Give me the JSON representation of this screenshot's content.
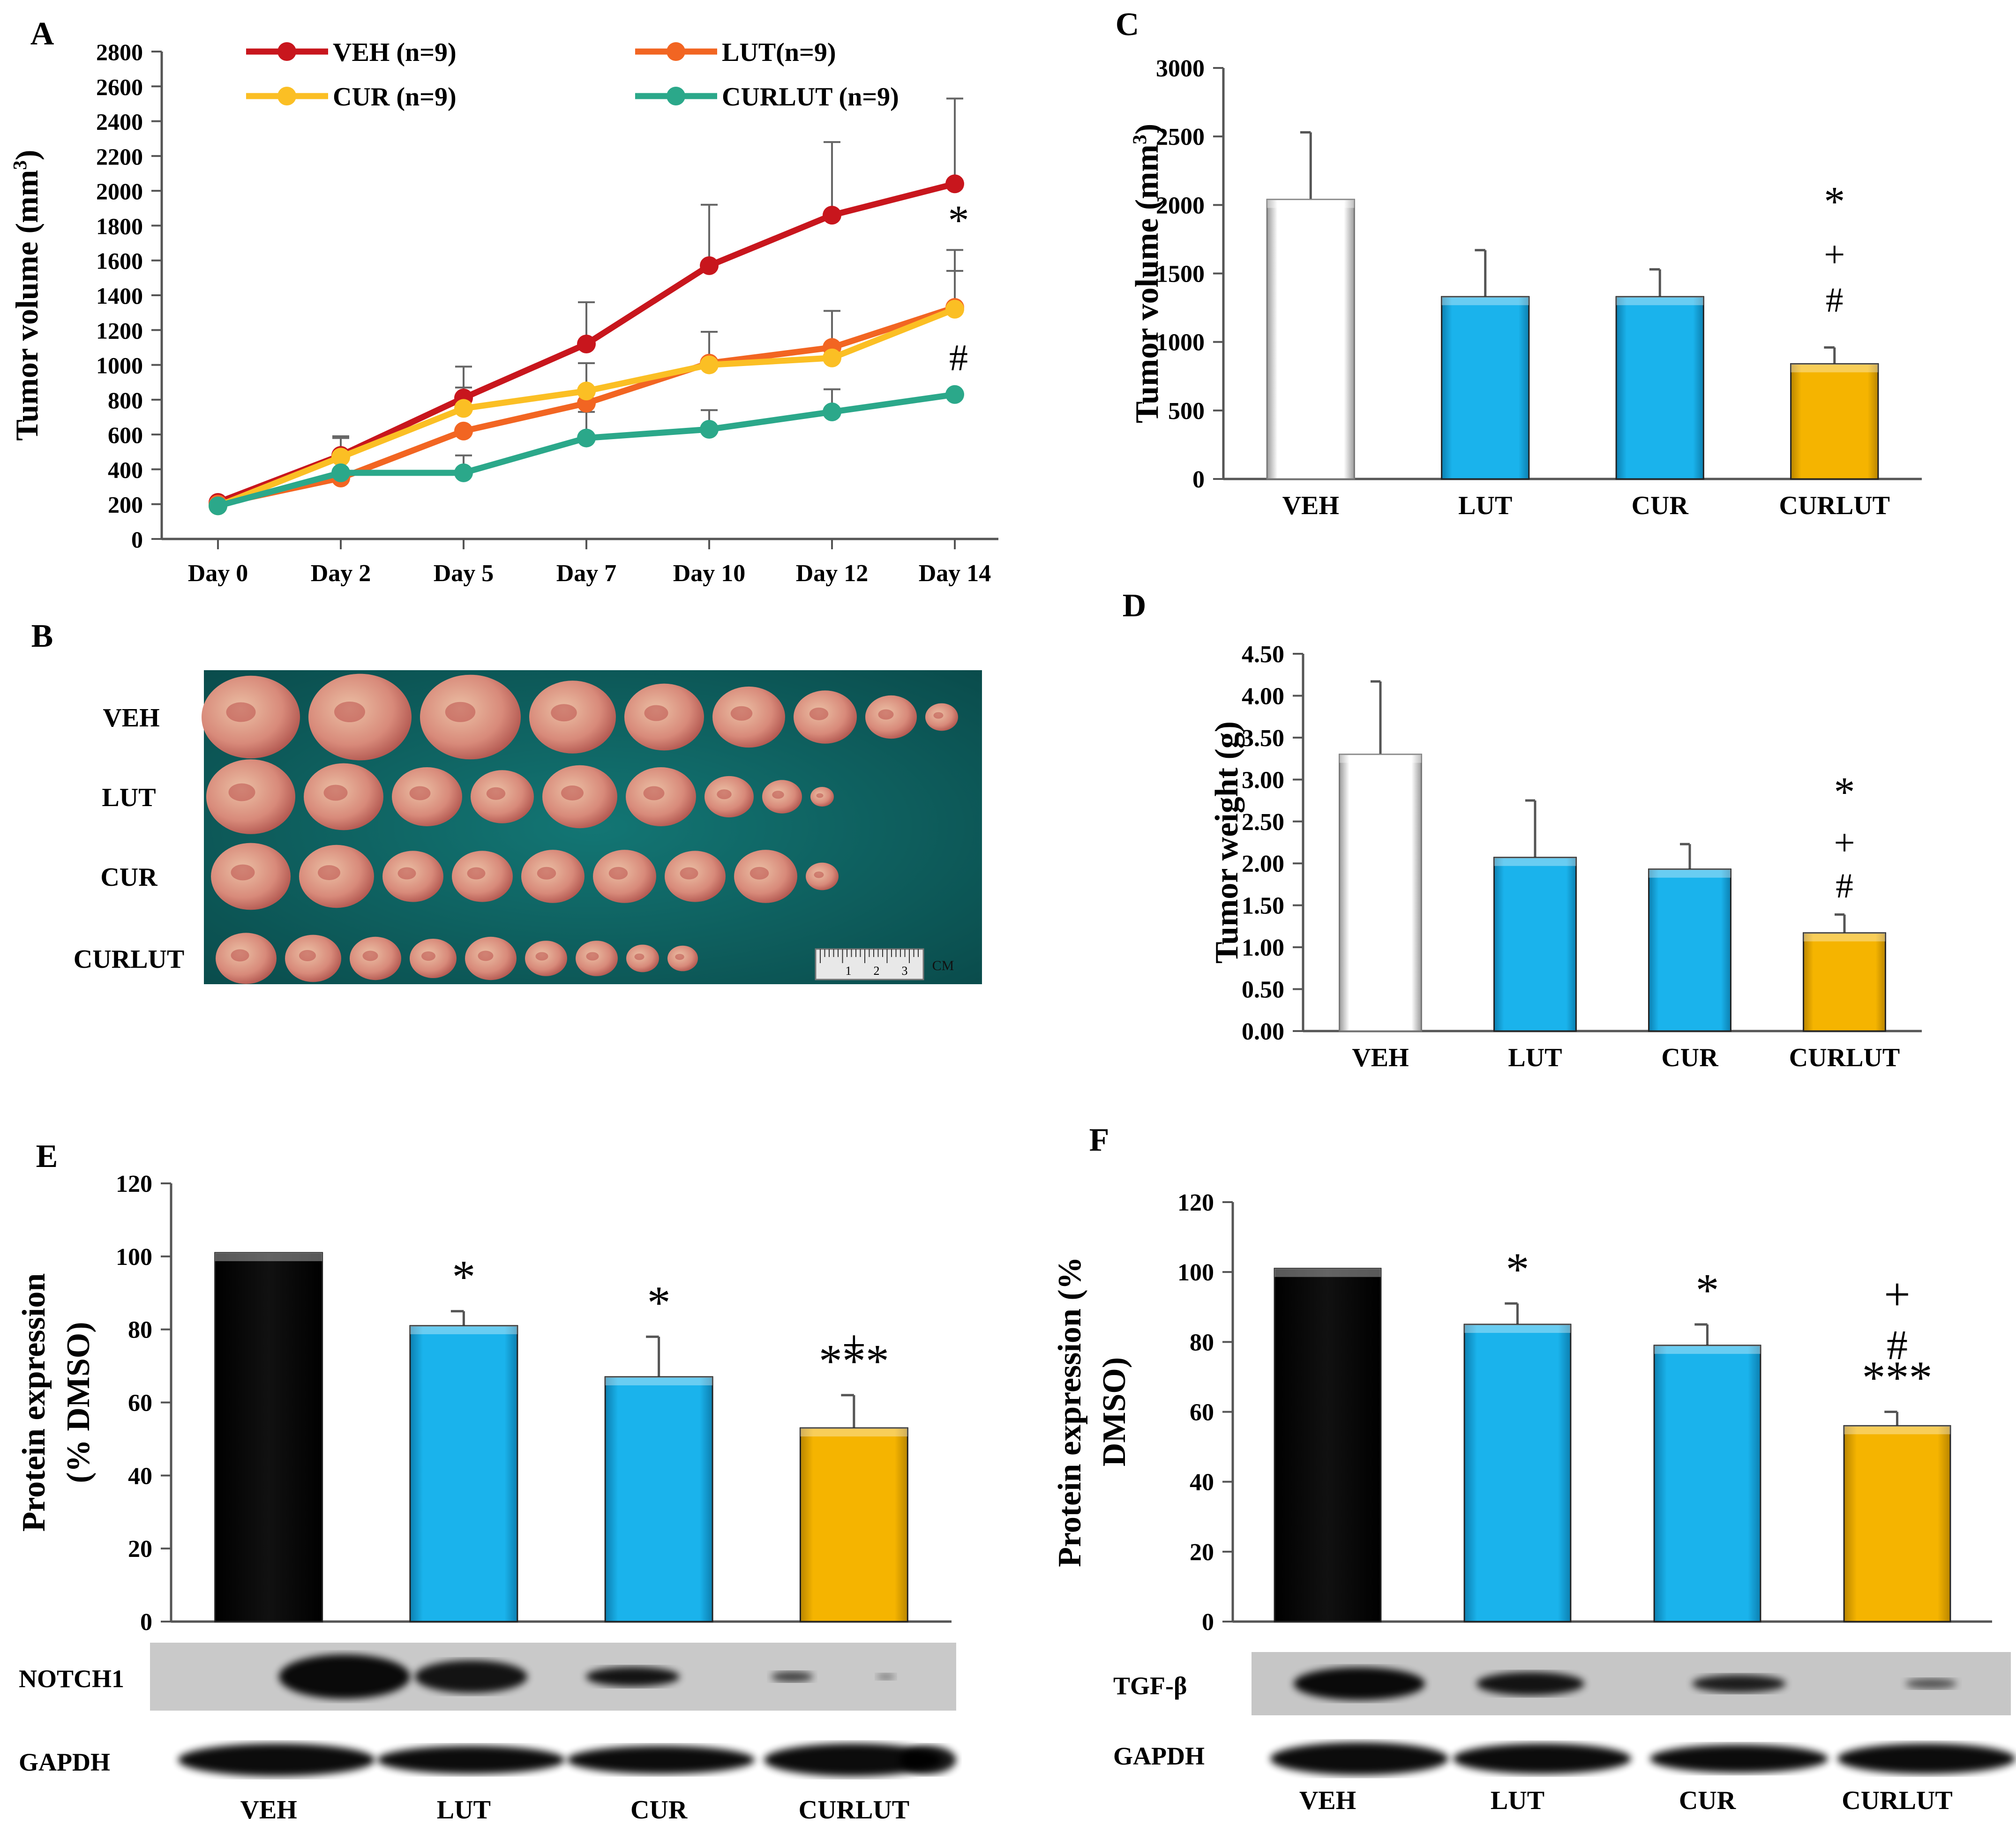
{
  "colors": {
    "VEH": "#c8161d",
    "LUT": "#f26522",
    "CUR": "#fbbf24",
    "CURLUT": "#2ba88a",
    "bar_white": "#ffffff",
    "bar_blue": "#1ab3ec",
    "bar_yellow": "#f5b400",
    "bar_black": "#000000",
    "photo_bg": "#0d5b5a"
  },
  "chart_data": [
    {
      "panel": "A",
      "type": "line",
      "ylabel": "Tumor volume (mm³)",
      "ylim": [
        0,
        2800
      ],
      "yticks": [
        "0",
        "200",
        "400",
        "600",
        "800",
        "1000",
        "1200",
        "1400",
        "1600",
        "1800",
        "2000",
        "2200",
        "2400",
        "2600",
        "2800"
      ],
      "categories": [
        "Day 0",
        "Day 2",
        "Day 5",
        "Day 7",
        "Day 10",
        "Day 12",
        "Day 14"
      ],
      "series": [
        {
          "name": "VEH (n=9)",
          "key": "VEH",
          "values": [
            210,
            480,
            810,
            1120,
            1570,
            1860,
            2040
          ],
          "err": [
            0,
            100,
            180,
            240,
            350,
            420,
            490
          ]
        },
        {
          "name": "LUT(n=9)",
          "key": "LUT",
          "values": [
            200,
            350,
            620,
            780,
            1010,
            1100,
            1330
          ],
          "err": [
            0,
            0,
            0,
            0,
            180,
            210,
            330
          ]
        },
        {
          "name": "CUR (n=9)",
          "key": "CUR",
          "values": [
            190,
            470,
            750,
            850,
            1000,
            1040,
            1320
          ],
          "err": [
            0,
            120,
            120,
            160,
            0,
            0,
            220
          ]
        },
        {
          "name": "CURLUT (n=9)",
          "key": "CURLUT",
          "values": [
            190,
            380,
            380,
            580,
            630,
            730,
            830
          ],
          "err": [
            0,
            0,
            100,
            150,
            110,
            130,
            0
          ]
        }
      ],
      "annotations": [
        "*",
        "#"
      ],
      "legend": "top"
    },
    {
      "panel": "C",
      "type": "bar",
      "ylabel": "Tumor volume (mm³)",
      "ylim": [
        0,
        3000
      ],
      "yticks": [
        "0",
        "500",
        "1000",
        "1500",
        "2000",
        "2500",
        "3000"
      ],
      "categories": [
        "VEH",
        "LUT",
        "CUR",
        "CURLUT"
      ],
      "values": [
        2040,
        1330,
        1330,
        840
      ],
      "err": [
        490,
        340,
        200,
        120
      ],
      "annotations": [
        "*",
        "+",
        "#"
      ]
    },
    {
      "panel": "D",
      "type": "bar",
      "ylabel": "Tumor weight (g)",
      "ylim": [
        0,
        4.5
      ],
      "yticks": [
        "0.00",
        "0.50",
        "1.00",
        "1.50",
        "2.00",
        "2.50",
        "3.00",
        "3.50",
        "4.00",
        "4.50"
      ],
      "categories": [
        "VEH",
        "LUT",
        "CUR",
        "CURLUT"
      ],
      "values": [
        3.3,
        2.07,
        1.93,
        1.17
      ],
      "err": [
        0.87,
        0.68,
        0.3,
        0.22
      ],
      "annotations": [
        "*",
        "+",
        "#"
      ]
    },
    {
      "panel": "E",
      "type": "bar",
      "ylabel_lines": [
        "Protein expression",
        "(% DMSO)"
      ],
      "ylim": [
        0,
        120
      ],
      "yticks": [
        "0",
        "20",
        "40",
        "60",
        "80",
        "100",
        "120"
      ],
      "categories": [
        "VEH",
        "LUT",
        "CUR",
        "CURLUT"
      ],
      "values": [
        101,
        81,
        67,
        53
      ],
      "err": [
        0,
        4,
        11,
        9
      ],
      "bar_annotations": [
        "",
        "*",
        "*",
        "***"
      ],
      "extra_annotations": [
        "+"
      ],
      "blot_labels": [
        "NOTCH1",
        "GAPDH"
      ]
    },
    {
      "panel": "F",
      "type": "bar",
      "ylabel_lines": [
        "Protein expression (%",
        "DMSO)"
      ],
      "ylim": [
        0,
        120
      ],
      "yticks": [
        "0",
        "20",
        "40",
        "60",
        "80",
        "100",
        "120"
      ],
      "categories": [
        "VEH",
        "LUT",
        "CUR",
        "CURLUT"
      ],
      "values": [
        101,
        85,
        79,
        56
      ],
      "err": [
        0,
        6,
        6,
        4
      ],
      "bar_annotations": [
        "",
        "*",
        "*",
        "***"
      ],
      "extra_annotations": [
        "+",
        "#"
      ],
      "blot_labels": [
        "TGF-β",
        "GAPDH"
      ]
    }
  ],
  "photo": {
    "panel": "B",
    "row_labels": [
      "VEH",
      "LUT",
      "CUR",
      "CURLUT"
    ],
    "counts": [
      9,
      9,
      9,
      9
    ],
    "ruler_label": "CM",
    "ruler_ticks": [
      "1",
      "2",
      "3"
    ]
  }
}
